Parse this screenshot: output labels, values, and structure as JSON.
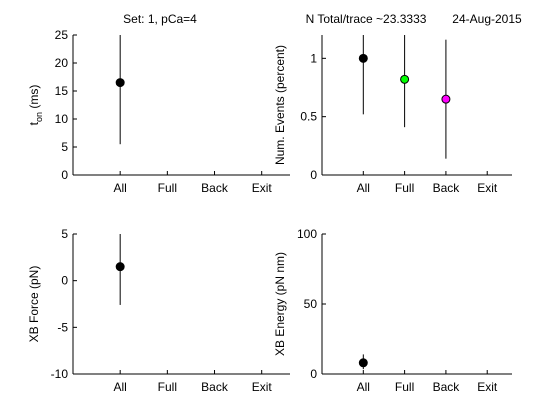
{
  "figure": {
    "title_left": "Set: 1, pCa=4",
    "title_right": "N Total/trace ~23.3333",
    "date": "24-Aug-2015"
  },
  "chart_data": [
    {
      "type": "scatter",
      "id": "ton",
      "ylabel_main": "t",
      "ylabel_sub": "on",
      "ylabel_unit": " (ms)",
      "categories": [
        "All",
        "Full",
        "Back",
        "Exit"
      ],
      "xlim": [
        -1,
        3.6
      ],
      "ylim": [
        0,
        25
      ],
      "yticks": [
        0,
        5,
        10,
        15,
        20,
        25
      ],
      "ytick_labels": [
        "0",
        "5",
        "10",
        "15",
        "20",
        "25"
      ],
      "points": [
        {
          "category": "All",
          "x": 0,
          "y": 16.5,
          "err_low": 5.5,
          "err_high": 25,
          "color": "#000000"
        }
      ]
    },
    {
      "type": "scatter",
      "id": "events",
      "ylabel": "Num. Events (percent)",
      "categories": [
        "All",
        "Full",
        "Back",
        "Exit"
      ],
      "xlim": [
        -1,
        3.6
      ],
      "ylim": [
        0,
        1.2
      ],
      "yticks": [
        0,
        0.5,
        1
      ],
      "ytick_labels": [
        "0",
        "0.5",
        "1"
      ],
      "points": [
        {
          "category": "All",
          "x": 0,
          "y": 1.0,
          "err_low": 0.52,
          "err_high": 1.2,
          "color": "#000000"
        },
        {
          "category": "Full",
          "x": 1,
          "y": 0.82,
          "err_low": 0.41,
          "err_high": 1.2,
          "color": "#00ff00"
        },
        {
          "category": "Back",
          "x": 2,
          "y": 0.65,
          "err_low": 0.14,
          "err_high": 1.16,
          "color": "#ff00ff"
        }
      ]
    },
    {
      "type": "scatter",
      "id": "force",
      "ylabel": "XB Force (pN)",
      "categories": [
        "All",
        "Full",
        "Back",
        "Exit"
      ],
      "xlim": [
        -1,
        3.6
      ],
      "ylim": [
        -10,
        5
      ],
      "yticks": [
        -10,
        -5,
        0,
        5
      ],
      "ytick_labels": [
        "-10",
        "-5",
        "0",
        "5"
      ],
      "points": [
        {
          "category": "All",
          "x": 0,
          "y": 1.5,
          "err_low": -2.6,
          "err_high": 5,
          "color": "#000000"
        }
      ]
    },
    {
      "type": "scatter",
      "id": "energy",
      "ylabel": "XB Energy (pN nm)",
      "categories": [
        "All",
        "Full",
        "Back",
        "Exit"
      ],
      "xlim": [
        -1,
        3.6
      ],
      "ylim": [
        0,
        100
      ],
      "yticks": [
        0,
        50,
        100
      ],
      "ytick_labels": [
        "0",
        "50",
        "100"
      ],
      "points": [
        {
          "category": "All",
          "x": 0,
          "y": 8,
          "err_low": 3.5,
          "err_high": 14,
          "color": "#000000"
        }
      ]
    }
  ]
}
